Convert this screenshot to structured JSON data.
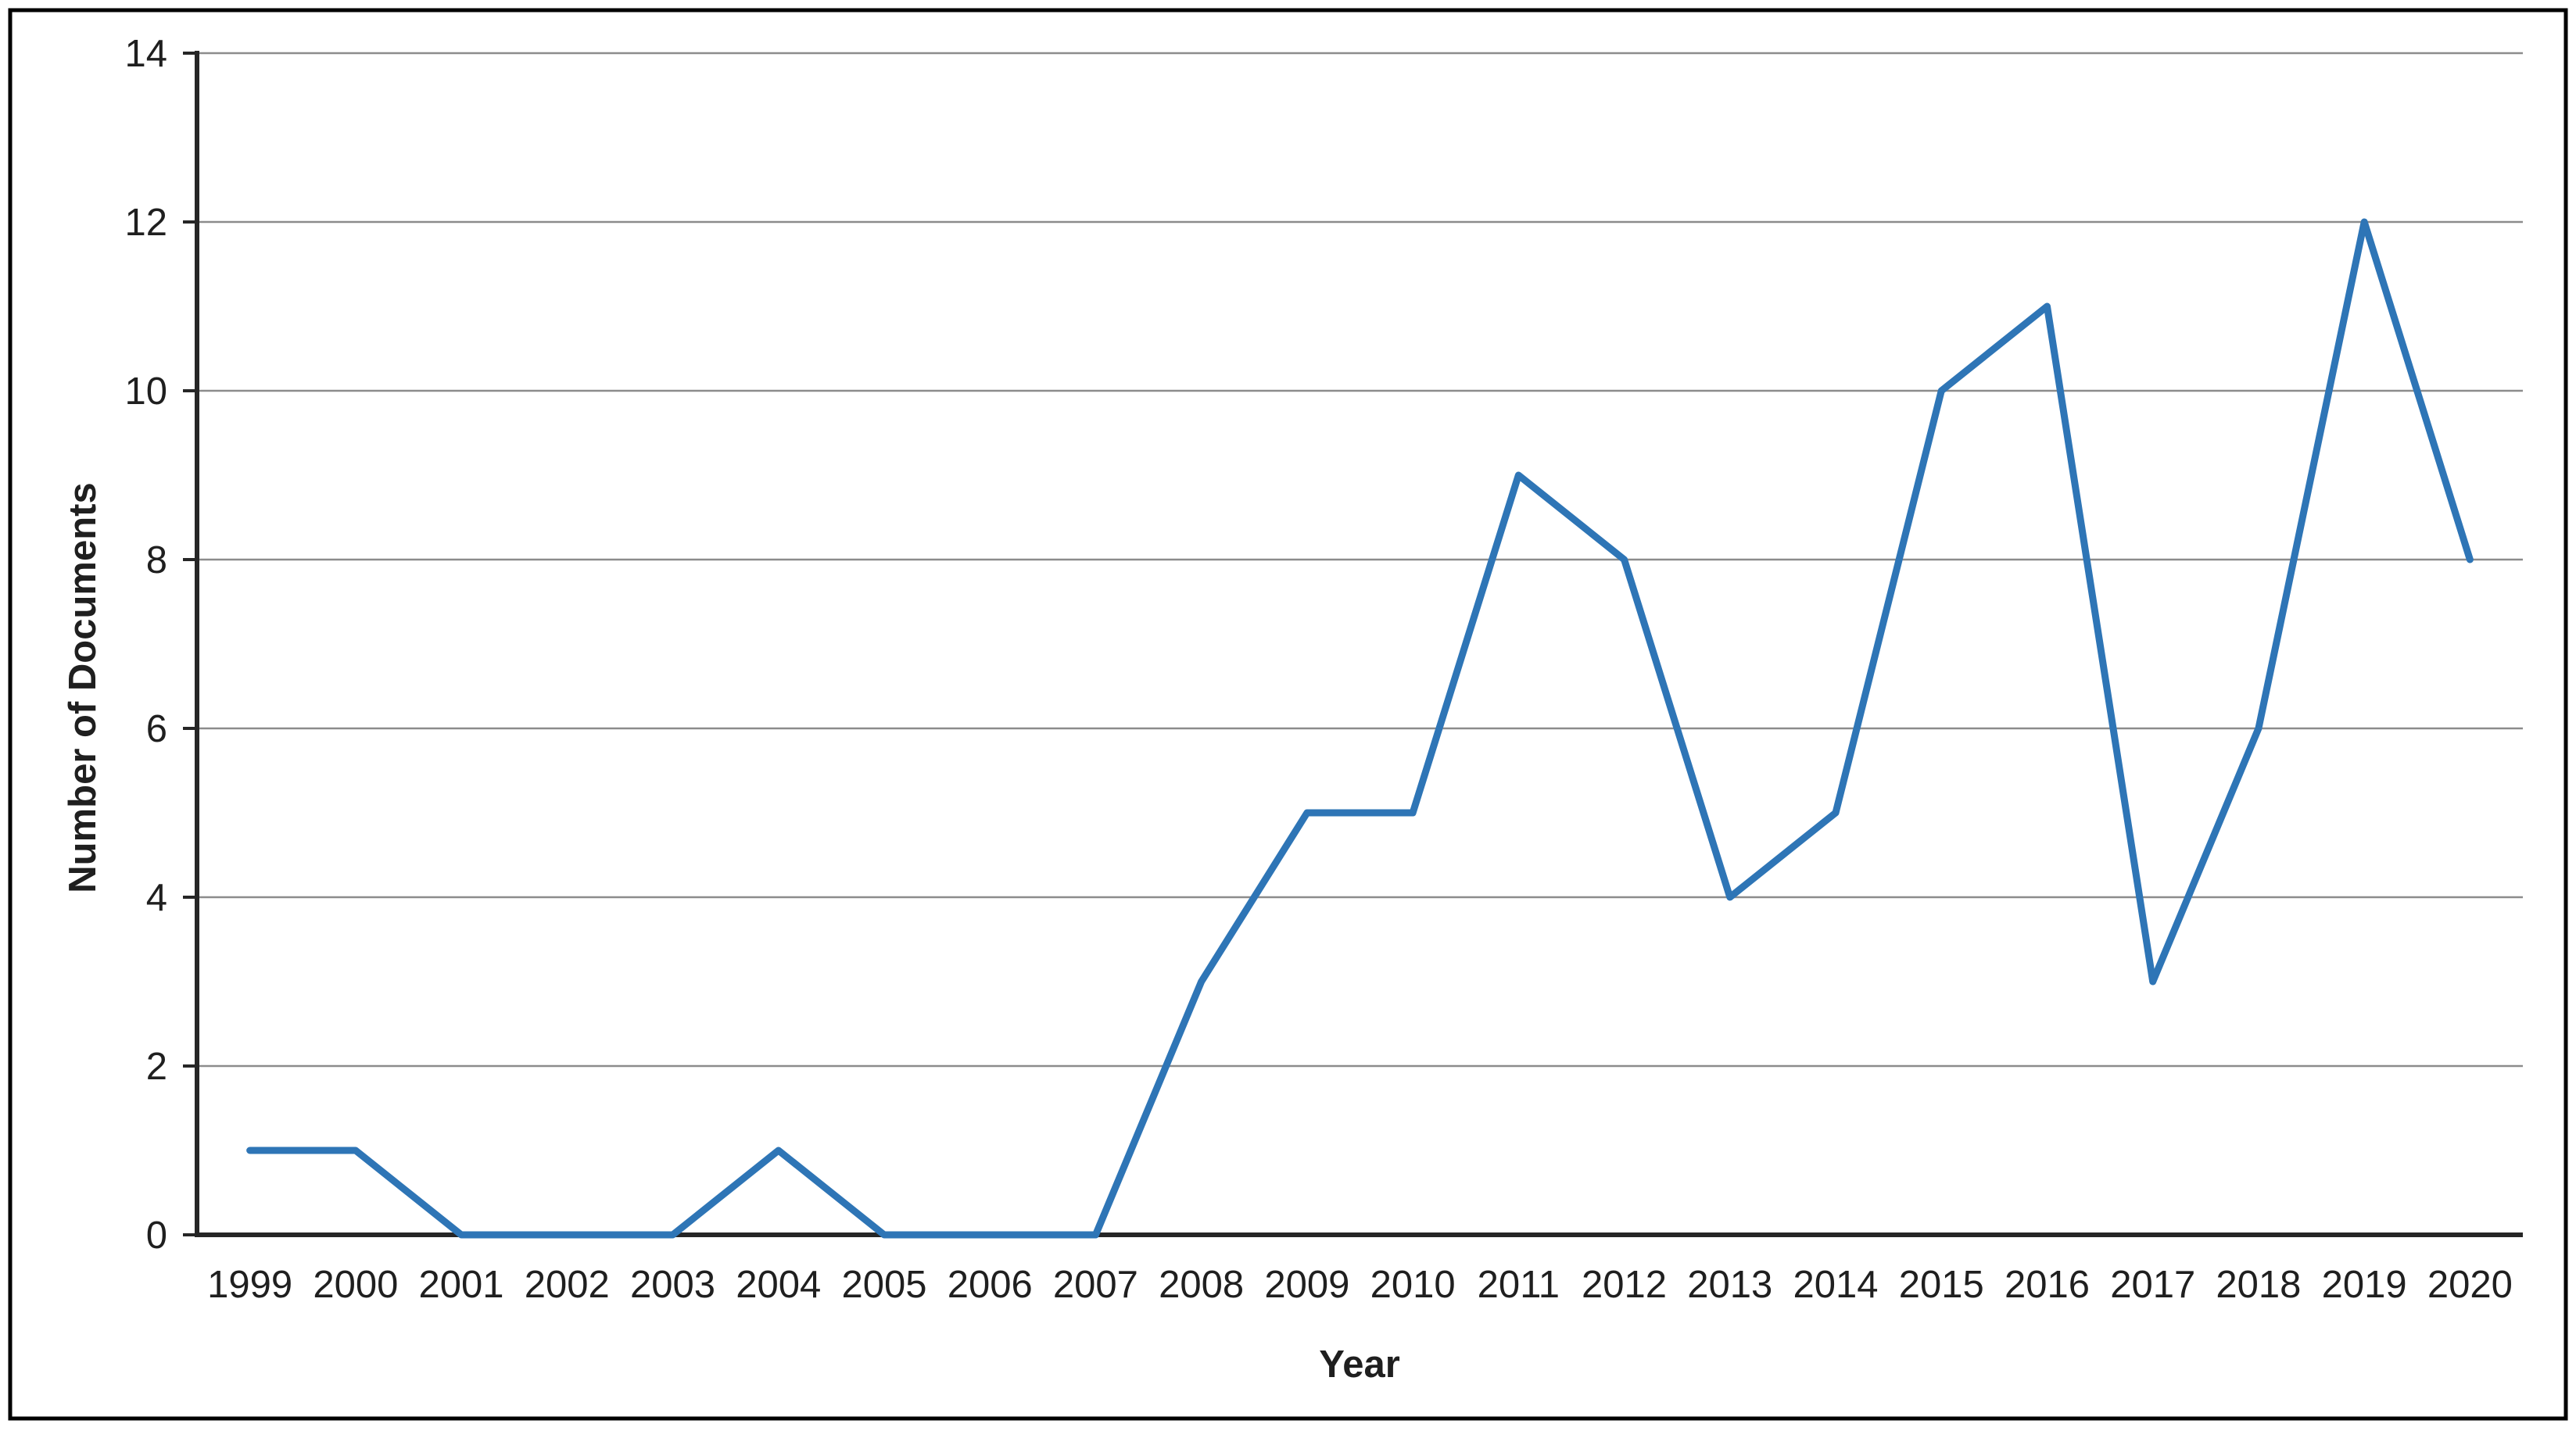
{
  "chart_data": {
    "type": "line",
    "title": "",
    "xlabel": "Year",
    "ylabel": "Number of Documents",
    "categories": [
      "1999",
      "2000",
      "2001",
      "2002",
      "2003",
      "2004",
      "2005",
      "2006",
      "2007",
      "2008",
      "2009",
      "2010",
      "2011",
      "2012",
      "2013",
      "2014",
      "2015",
      "2016",
      "2017",
      "2018",
      "2019",
      "2020"
    ],
    "series": [
      {
        "name": "Number of Documents",
        "values": [
          1,
          1,
          0,
          0,
          0,
          1,
          0,
          0,
          0,
          3,
          5,
          5,
          9,
          8,
          4,
          5,
          10,
          11,
          3,
          6,
          12,
          8
        ]
      }
    ],
    "ylim": [
      0,
      14
    ],
    "y_ticks": [
      0,
      2,
      4,
      6,
      8,
      10,
      12,
      14
    ],
    "grid": "horizontal-only",
    "legend_position": "none",
    "line_color": "#2E75B6",
    "gridline_color": "#8C8C8C",
    "axis_color": "#262626",
    "frame_color": "#000000",
    "background_color": "#FFFFFF"
  }
}
